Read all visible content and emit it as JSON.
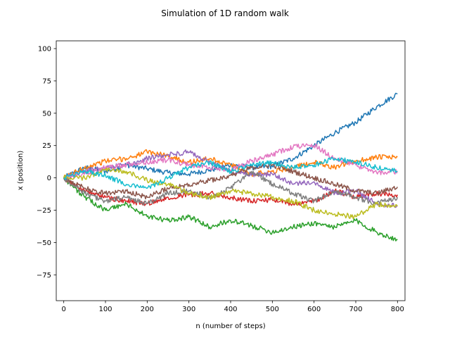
{
  "chart_data": {
    "type": "line",
    "title": "Simulation of 1D random walk",
    "xlabel": "n (number of steps)",
    "ylabel": "x (position)",
    "xlim": [
      -18,
      818
    ],
    "ylim": [
      -95,
      106
    ],
    "xticks": [
      0,
      100,
      200,
      300,
      400,
      500,
      600,
      700,
      800
    ],
    "yticks": [
      -75,
      -50,
      -25,
      0,
      25,
      50,
      75,
      100
    ],
    "grid": false,
    "legend": "none",
    "series": [
      {
        "color": "#1f77b4",
        "points": [
          [
            0,
            0
          ],
          [
            50,
            8
          ],
          [
            100,
            5
          ],
          [
            150,
            10
          ],
          [
            200,
            7
          ],
          [
            250,
            4
          ],
          [
            300,
            3
          ],
          [
            350,
            6
          ],
          [
            400,
            10
          ],
          [
            450,
            8
          ],
          [
            500,
            9
          ],
          [
            550,
            15
          ],
          [
            600,
            25
          ],
          [
            650,
            35
          ],
          [
            700,
            43
          ],
          [
            750,
            55
          ],
          [
            800,
            65
          ]
        ]
      },
      {
        "color": "#ff7f0e",
        "points": [
          [
            0,
            0
          ],
          [
            50,
            8
          ],
          [
            100,
            13
          ],
          [
            150,
            15
          ],
          [
            200,
            20
          ],
          [
            250,
            17
          ],
          [
            300,
            12
          ],
          [
            350,
            15
          ],
          [
            400,
            10
          ],
          [
            450,
            3
          ],
          [
            500,
            5
          ],
          [
            550,
            8
          ],
          [
            600,
            12
          ],
          [
            650,
            8
          ],
          [
            700,
            13
          ],
          [
            750,
            16
          ],
          [
            800,
            16
          ]
        ]
      },
      {
        "color": "#2ca02c",
        "points": [
          [
            0,
            0
          ],
          [
            50,
            -15
          ],
          [
            100,
            -25
          ],
          [
            150,
            -20
          ],
          [
            200,
            -30
          ],
          [
            250,
            -33
          ],
          [
            300,
            -30
          ],
          [
            350,
            -38
          ],
          [
            400,
            -33
          ],
          [
            450,
            -37
          ],
          [
            500,
            -42
          ],
          [
            550,
            -38
          ],
          [
            600,
            -35
          ],
          [
            650,
            -38
          ],
          [
            700,
            -33
          ],
          [
            750,
            -42
          ],
          [
            800,
            -48
          ]
        ]
      },
      {
        "color": "#d62728",
        "points": [
          [
            0,
            0
          ],
          [
            50,
            -10
          ],
          [
            100,
            -15
          ],
          [
            150,
            -18
          ],
          [
            200,
            -20
          ],
          [
            250,
            -15
          ],
          [
            300,
            -13
          ],
          [
            350,
            -12
          ],
          [
            400,
            -15
          ],
          [
            450,
            -18
          ],
          [
            500,
            -17
          ],
          [
            550,
            -20
          ],
          [
            600,
            -18
          ],
          [
            650,
            -10
          ],
          [
            700,
            -15
          ],
          [
            750,
            -12
          ],
          [
            800,
            -13
          ]
        ]
      },
      {
        "color": "#9467bd",
        "points": [
          [
            0,
            0
          ],
          [
            50,
            5
          ],
          [
            100,
            8
          ],
          [
            150,
            10
          ],
          [
            200,
            15
          ],
          [
            250,
            18
          ],
          [
            300,
            20
          ],
          [
            350,
            12
          ],
          [
            400,
            5
          ],
          [
            450,
            2
          ],
          [
            500,
            3
          ],
          [
            550,
            -5
          ],
          [
            600,
            -3
          ],
          [
            650,
            -12
          ],
          [
            700,
            -10
          ],
          [
            750,
            -20
          ],
          [
            800,
            -22
          ]
        ]
      },
      {
        "color": "#8c564b",
        "points": [
          [
            0,
            0
          ],
          [
            50,
            -8
          ],
          [
            100,
            -12
          ],
          [
            150,
            -10
          ],
          [
            200,
            -15
          ],
          [
            250,
            -8
          ],
          [
            300,
            -5
          ],
          [
            350,
            -2
          ],
          [
            400,
            2
          ],
          [
            450,
            8
          ],
          [
            500,
            10
          ],
          [
            550,
            5
          ],
          [
            600,
            0
          ],
          [
            650,
            -5
          ],
          [
            700,
            -10
          ],
          [
            750,
            -12
          ],
          [
            800,
            -7
          ]
        ]
      },
      {
        "color": "#e377c2",
        "points": [
          [
            0,
            0
          ],
          [
            50,
            3
          ],
          [
            100,
            8
          ],
          [
            150,
            10
          ],
          [
            200,
            12
          ],
          [
            250,
            14
          ],
          [
            300,
            10
          ],
          [
            350,
            8
          ],
          [
            400,
            6
          ],
          [
            450,
            13
          ],
          [
            500,
            18
          ],
          [
            550,
            24
          ],
          [
            600,
            25
          ],
          [
            650,
            15
          ],
          [
            700,
            10
          ],
          [
            750,
            4
          ],
          [
            800,
            5
          ]
        ]
      },
      {
        "color": "#7f7f7f",
        "points": [
          [
            0,
            0
          ],
          [
            50,
            -12
          ],
          [
            100,
            -18
          ],
          [
            150,
            -15
          ],
          [
            200,
            -20
          ],
          [
            250,
            -12
          ],
          [
            300,
            -10
          ],
          [
            350,
            -15
          ],
          [
            400,
            -8
          ],
          [
            450,
            5
          ],
          [
            500,
            -5
          ],
          [
            550,
            -12
          ],
          [
            600,
            -18
          ],
          [
            650,
            -10
          ],
          [
            700,
            -15
          ],
          [
            750,
            -20
          ],
          [
            800,
            -15
          ]
        ]
      },
      {
        "color": "#bcbd22",
        "points": [
          [
            0,
            0
          ],
          [
            50,
            0
          ],
          [
            100,
            6
          ],
          [
            150,
            5
          ],
          [
            200,
            -2
          ],
          [
            250,
            -5
          ],
          [
            300,
            -12
          ],
          [
            350,
            -15
          ],
          [
            400,
            -10
          ],
          [
            450,
            -12
          ],
          [
            500,
            -15
          ],
          [
            550,
            -18
          ],
          [
            600,
            -25
          ],
          [
            650,
            -28
          ],
          [
            700,
            -30
          ],
          [
            750,
            -20
          ],
          [
            800,
            -22
          ]
        ]
      },
      {
        "color": "#17becf",
        "points": [
          [
            0,
            0
          ],
          [
            50,
            5
          ],
          [
            100,
            2
          ],
          [
            150,
            -5
          ],
          [
            200,
            -8
          ],
          [
            250,
            0
          ],
          [
            300,
            8
          ],
          [
            350,
            12
          ],
          [
            400,
            5
          ],
          [
            450,
            10
          ],
          [
            500,
            12
          ],
          [
            550,
            8
          ],
          [
            600,
            10
          ],
          [
            650,
            15
          ],
          [
            700,
            12
          ],
          [
            750,
            8
          ],
          [
            800,
            5
          ]
        ]
      }
    ]
  }
}
